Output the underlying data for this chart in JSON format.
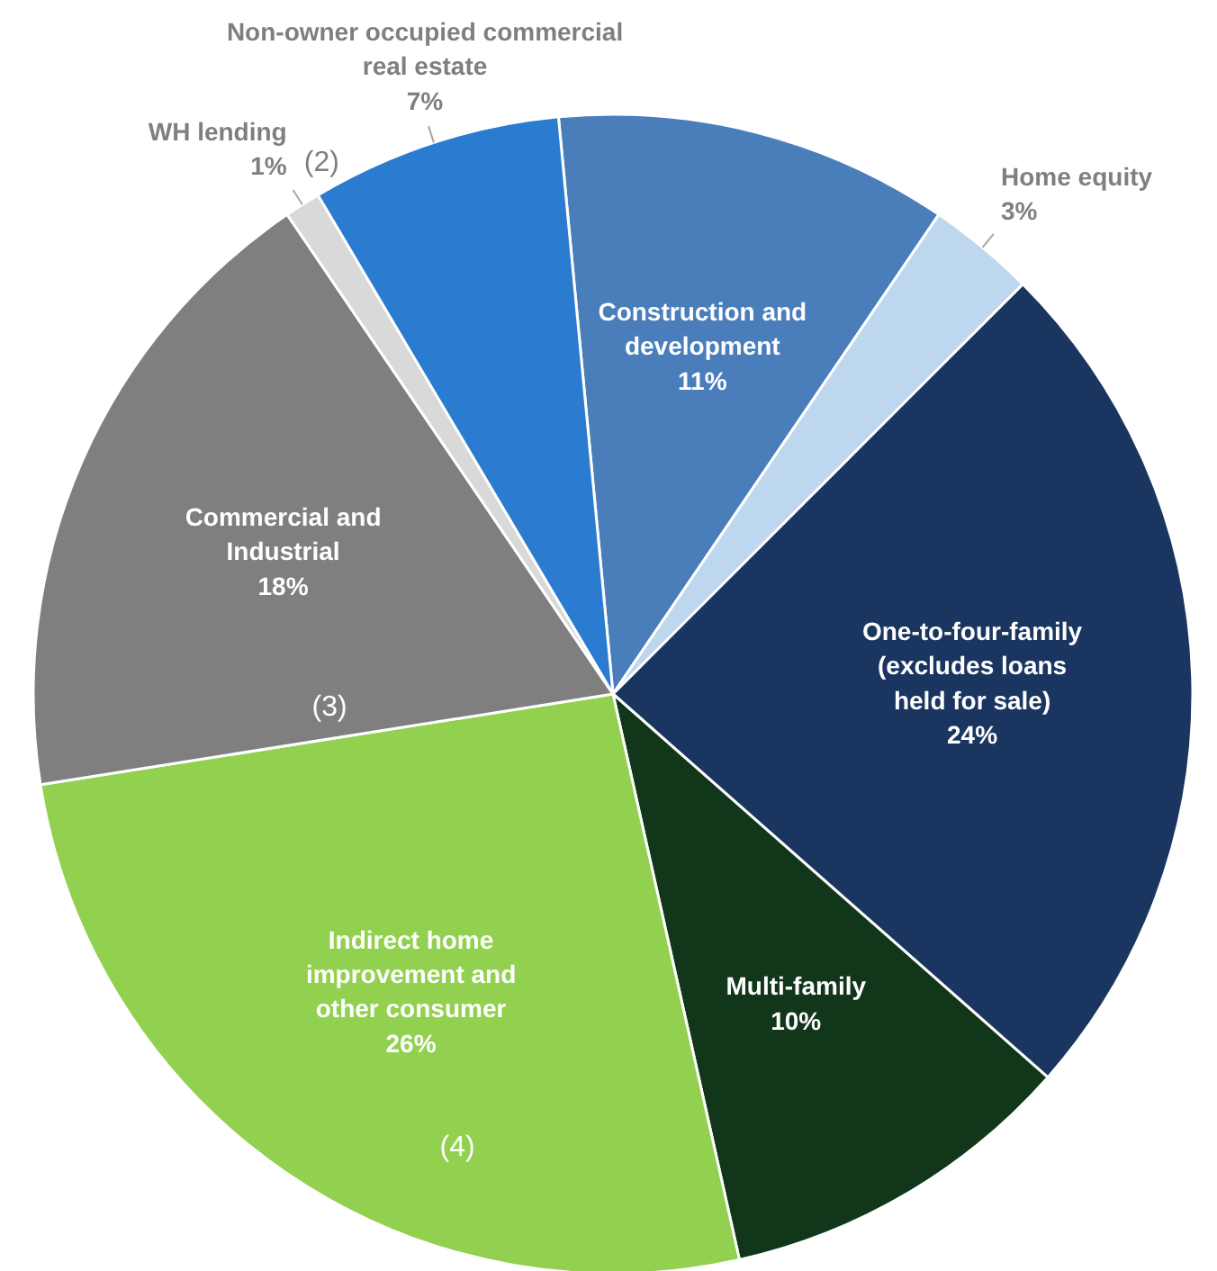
{
  "chart_data": {
    "type": "pie",
    "categories": [
      "Construction and\ndevelopment",
      "Home equity",
      "One-to-four-family\n(excludes loans\nheld for sale)",
      "Multi-family",
      "Indirect home\nimprovement and\nother consumer",
      "Commercial and\nIndustrial",
      "WH lending",
      "Non-owner occupied commercial\nreal estate"
    ],
    "values": [
      11,
      3,
      24,
      10,
      26,
      18,
      1,
      7
    ],
    "value_labels": [
      "11%",
      "3%",
      "24%",
      "10%",
      "26%",
      "18%",
      "1%",
      "7%"
    ],
    "colors": [
      "#4a7ebb",
      "#bdd7ee",
      "#1a3660",
      "#12361a",
      "#92d050",
      "#7f7f7f",
      "#d9d9d9",
      "#2b7bd0"
    ],
    "annotations": [
      {
        "text": "(2)",
        "x": "WH lending"
      },
      {
        "text": "(3)",
        "x": "Commercial and\nIndustrial"
      },
      {
        "text": "(4)",
        "x": "Indirect home\nimprovement and\nother consumer"
      }
    ]
  }
}
